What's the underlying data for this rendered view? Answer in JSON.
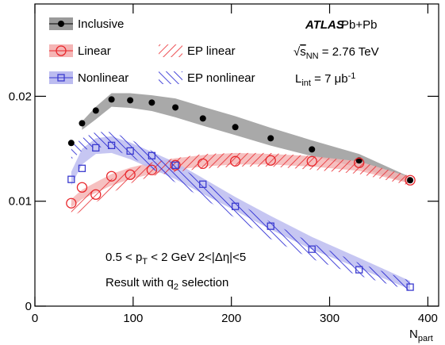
{
  "chart_data": {
    "type": "band-scatter",
    "xlim": [
      0,
      411
    ],
    "ylim": [
      0,
      0.0288
    ],
    "xticks": [
      0,
      100,
      200,
      300,
      400
    ],
    "yticks": [
      0,
      0.01,
      0.02
    ],
    "x_label": [
      {
        "text": "N"
      },
      {
        "text": "part",
        "shift": "sub"
      }
    ],
    "x": [
      37,
      48,
      62,
      78,
      97,
      119,
      143,
      171,
      204,
      240,
      282,
      330,
      382
    ],
    "series": [
      {
        "name": "Inclusive",
        "kind": "points",
        "marker": "circle-filled",
        "color": "#000000",
        "band_color": "#9a9a9a",
        "values": [
          0.01555,
          0.01743,
          0.01864,
          0.0197,
          0.01962,
          0.0194,
          0.01894,
          0.01789,
          0.01706,
          0.016,
          0.01494,
          0.01389,
          0.012
        ],
        "band_low": [
          null,
          0.0168,
          0.0178,
          0.019,
          0.0189,
          0.0186,
          0.018,
          0.0172,
          0.0163,
          0.0153,
          0.0143,
          0.0132,
          0.0117
        ],
        "band_high": [
          null,
          0.0176,
          0.019,
          0.0203,
          0.0203,
          0.0201,
          0.0198,
          0.019,
          0.0181,
          0.017,
          0.0158,
          0.0145,
          0.0123
        ]
      },
      {
        "name": "Linear",
        "kind": "points",
        "marker": "circle-open",
        "color": "#e8262b",
        "band_color": "#f5b5b5",
        "values": [
          0.00981,
          0.01132,
          0.01064,
          0.01238,
          0.01253,
          0.01298,
          0.01343,
          0.01358,
          0.01381,
          0.01389,
          0.01381,
          0.01366,
          0.012
        ],
        "band_low": [
          0.0094,
          0.0102,
          0.0108,
          0.0115,
          0.0121,
          0.0126,
          0.013,
          0.0133,
          0.0135,
          0.0135,
          0.0133,
          0.0129,
          0.0117
        ],
        "band_high": [
          0.0102,
          0.0111,
          0.0118,
          0.0126,
          0.0132,
          0.0137,
          0.0141,
          0.0144,
          0.0146,
          0.0145,
          0.0143,
          0.0138,
          0.0123
        ]
      },
      {
        "name": "Nonlinear",
        "kind": "points",
        "marker": "square-open",
        "color": "#3a3acf",
        "band_color": "#bcbcf0",
        "values": [
          0.01208,
          0.01313,
          0.01509,
          0.01532,
          0.01479,
          0.01434,
          0.01343,
          0.01162,
          0.00951,
          0.00762,
          0.00543,
          0.00347,
          0.00181
        ],
        "band_low": [
          0.0115,
          0.0135,
          0.0145,
          0.0146,
          0.014,
          0.0131,
          0.0121,
          0.0107,
          0.0091,
          0.0073,
          0.0054,
          0.0036,
          0.0016
        ],
        "band_high": [
          0.0128,
          0.015,
          0.016,
          0.0162,
          0.0156,
          0.0147,
          0.0137,
          0.0122,
          0.0104,
          0.0086,
          0.0066,
          0.0046,
          0.0024
        ]
      },
      {
        "name": "EP linear",
        "kind": "hatch",
        "hatch": "forward",
        "color": "#e8262b",
        "band_low": [
          0.0085,
          0.0091,
          0.0099,
          0.0108,
          0.0117,
          0.0124,
          0.0128,
          0.0131,
          0.0133,
          0.0133,
          0.013,
          0.0126,
          0.0115
        ],
        "band_high": [
          0.0097,
          0.0104,
          0.0112,
          0.0121,
          0.013,
          0.0137,
          0.0141,
          0.0145,
          0.0146,
          0.0146,
          0.0143,
          0.0138,
          0.0124
        ]
      },
      {
        "name": "EP nonlinear",
        "kind": "hatch",
        "hatch": "backward",
        "color": "#1a1ad0",
        "band_low": [
          0.014,
          0.0148,
          0.0152,
          0.015,
          0.0143,
          0.0131,
          0.0118,
          0.0103,
          0.0084,
          0.0064,
          0.0045,
          0.0029,
          0.0015
        ],
        "band_high": [
          0.0152,
          0.016,
          0.0166,
          0.0166,
          0.0159,
          0.0148,
          0.0135,
          0.0119,
          0.01,
          0.008,
          0.006,
          0.0041,
          0.0024
        ]
      }
    ],
    "annotations": [
      {
        "style": "bold-italic",
        "parts": [
          {
            "text": "ATLAS"
          }
        ]
      },
      {
        "parts": [
          {
            "text": "Pb+Pb"
          }
        ]
      },
      {
        "parts": [
          {
            "text": "√"
          },
          {
            "text": "s",
            "shift": "over"
          },
          {
            "text": "NN",
            "shift": "sub"
          },
          {
            "text": " = 2.76 TeV"
          }
        ]
      },
      {
        "parts": [
          {
            "text": "L"
          },
          {
            "text": "int",
            "shift": "sub"
          },
          {
            "text": " = 7 μb"
          },
          {
            "text": "-1",
            "shift": "super"
          }
        ]
      },
      {
        "parts": [
          {
            "text": "0.5 < p"
          },
          {
            "text": "T",
            "shift": "sub"
          },
          {
            "text": " < 2 GeV  2<|Δη|<5"
          }
        ]
      },
      {
        "parts": [
          {
            "text": "Result with q"
          },
          {
            "text": "2",
            "shift": "sub"
          },
          {
            "text": " selection"
          }
        ]
      }
    ]
  }
}
